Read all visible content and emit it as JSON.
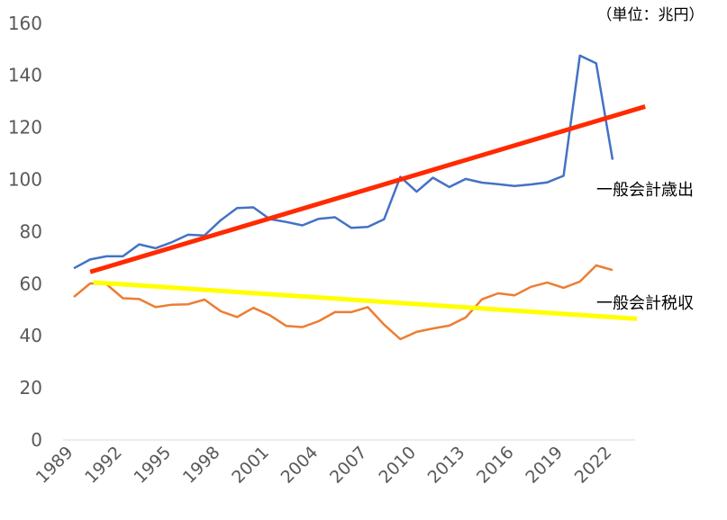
{
  "unit_label": "（単位：兆円）",
  "chart_data": {
    "type": "line",
    "title": "",
    "xlabel": "",
    "ylabel": "",
    "unit": "（単位：兆円）",
    "x": [
      1989,
      1990,
      1991,
      1992,
      1993,
      1994,
      1995,
      1996,
      1997,
      1998,
      1999,
      2000,
      2001,
      2002,
      2003,
      2004,
      2005,
      2006,
      2007,
      2008,
      2009,
      2010,
      2011,
      2012,
      2013,
      2014,
      2015,
      2016,
      2017,
      2018,
      2019,
      2020,
      2021,
      2022
    ],
    "x_tick_labels": [
      "1989",
      "1992",
      "1995",
      "1998",
      "2001",
      "2004",
      "2007",
      "2010",
      "2013",
      "2016",
      "2019",
      "2022"
    ],
    "y_ticks": [
      0,
      20,
      40,
      60,
      80,
      100,
      120,
      140,
      160
    ],
    "ylim": [
      0,
      160
    ],
    "grid": false,
    "series": [
      {
        "name": "一般会計歳出",
        "color": "#4472c4",
        "values": [
          65.9,
          69.3,
          70.5,
          70.5,
          75.1,
          73.6,
          75.9,
          78.8,
          78.5,
          84.4,
          89.0,
          89.3,
          84.8,
          83.7,
          82.4,
          84.9,
          85.5,
          81.4,
          81.8,
          84.7,
          101.0,
          95.3,
          100.7,
          97.1,
          100.2,
          98.8,
          98.2,
          97.5,
          98.1,
          98.9,
          101.4,
          147.6,
          144.6,
          107.6
        ]
      },
      {
        "name": "一般会計税収",
        "color": "#ed7d31",
        "values": [
          54.9,
          60.1,
          59.8,
          54.4,
          54.1,
          51.0,
          51.9,
          52.1,
          53.9,
          49.4,
          47.2,
          50.7,
          47.9,
          43.8,
          43.3,
          45.6,
          49.1,
          49.1,
          51.0,
          44.3,
          38.7,
          41.5,
          42.8,
          43.9,
          47.0,
          54.0,
          56.3,
          55.5,
          58.8,
          60.4,
          58.4,
          60.8,
          67.0,
          65.2
        ]
      }
    ],
    "trendlines": [
      {
        "series": "一般会計歳出",
        "color": "#ff2a00",
        "x": [
          1990,
          2024
        ],
        "y": [
          64.5,
          128
        ]
      },
      {
        "series": "一般会計税収",
        "color": "#ffff00",
        "x": [
          1990.2,
          2023.5
        ],
        "y": [
          60.5,
          46.5
        ]
      }
    ]
  }
}
